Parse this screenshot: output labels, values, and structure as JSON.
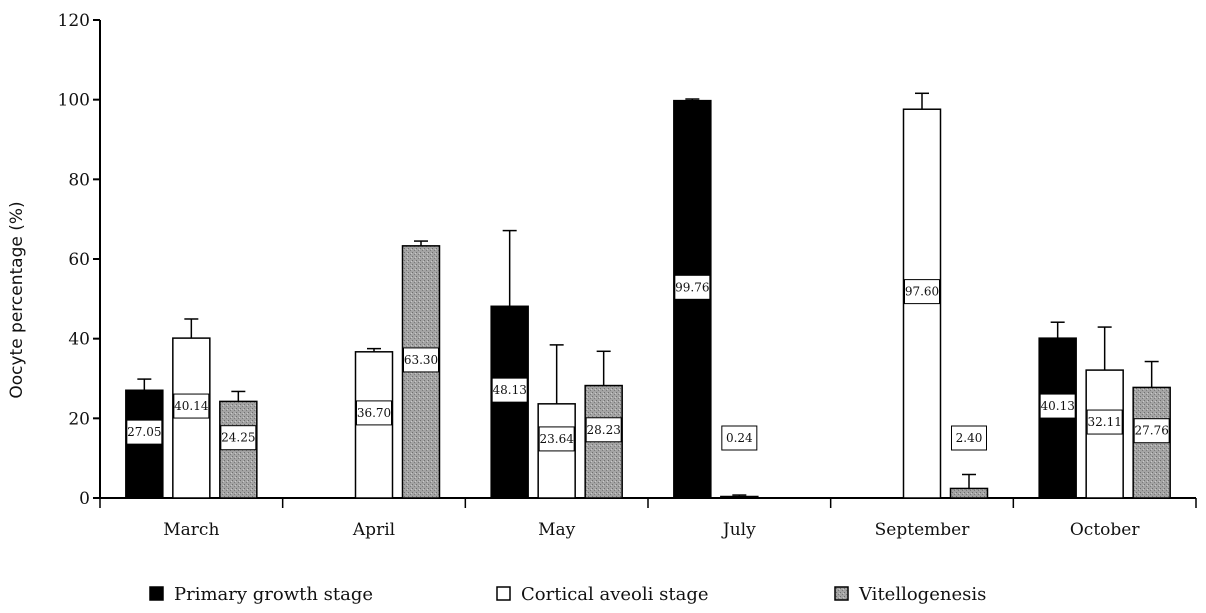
{
  "chart_data": {
    "type": "bar",
    "categories": [
      "March",
      "April",
      "May",
      "July",
      "September",
      "October"
    ],
    "ylabel": "Oocyte percentage (%)",
    "ylim": [
      0,
      120
    ],
    "yticks": [
      0,
      20,
      40,
      60,
      80,
      100,
      120
    ],
    "grid": false,
    "legend_position": "bottom",
    "series": [
      {
        "name": "Primary growth stage",
        "color": "#000000",
        "values": [
          27.05,
          null,
          48.13,
          99.76,
          null,
          40.13
        ],
        "errors": [
          2.8,
          null,
          19.0,
          0.4,
          null,
          4.0
        ]
      },
      {
        "name": "Cortical aveoli stage",
        "color": "#ffffff",
        "values": [
          40.14,
          36.7,
          23.64,
          0.24,
          97.6,
          32.11
        ],
        "errors": [
          4.8,
          0.8,
          14.8,
          0.5,
          4.0,
          10.8
        ]
      },
      {
        "name": "Vitellogenesis",
        "color": "#999999",
        "values": [
          24.25,
          63.3,
          28.23,
          null,
          2.4,
          27.76
        ],
        "errors": [
          2.5,
          1.2,
          8.6,
          null,
          3.5,
          6.5
        ]
      }
    ]
  }
}
